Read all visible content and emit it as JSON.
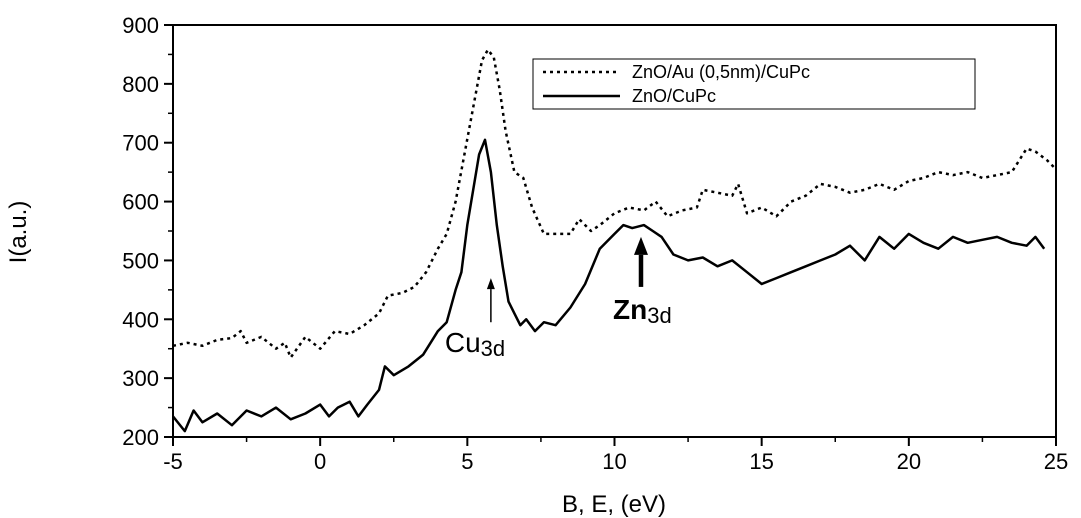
{
  "chart_data": {
    "type": "line",
    "xlabel": "B, E, (eV)",
    "ylabel": "I(a.u.)",
    "xlim": [
      -5,
      25
    ],
    "ylim": [
      200,
      900
    ],
    "xticks": [
      "-5",
      "0",
      "5",
      "10",
      "15",
      "20",
      "25"
    ],
    "yticks": [
      "200",
      "300",
      "400",
      "500",
      "600",
      "700",
      "800",
      "900"
    ],
    "grid": false,
    "legend_position": "top-right",
    "series": [
      {
        "name": "ZnO/Au (0,5nm)/CuPc",
        "style": "dotted",
        "color": "#000000",
        "x": [
          -5,
          -4.5,
          -4,
          -3.5,
          -3,
          -2.7,
          -2.5,
          -2,
          -1.5,
          -1.2,
          -1,
          -0.5,
          0,
          0.5,
          1,
          1.5,
          2,
          2.3,
          2.8,
          3.2,
          3.6,
          4,
          4.3,
          4.6,
          4.9,
          5.2,
          5.5,
          5.7,
          5.9,
          6.1,
          6.3,
          6.6,
          6.9,
          7.2,
          7.6,
          8,
          8.5,
          8.8,
          9.2,
          9.5,
          10,
          10.5,
          11,
          11.4,
          11.8,
          12.3,
          12.8,
          13,
          13.5,
          14,
          14.2,
          14.5,
          15,
          15.5,
          16,
          16.5,
          17,
          17.5,
          18,
          18.5,
          19,
          19.5,
          20,
          20.5,
          21,
          21.5,
          22,
          22.5,
          23,
          23.5,
          24,
          24.3,
          24.7,
          25
        ],
        "values": [
          355,
          360,
          355,
          365,
          368,
          380,
          360,
          370,
          350,
          360,
          335,
          370,
          350,
          380,
          375,
          390,
          410,
          440,
          445,
          455,
          480,
          520,
          545,
          600,
          680,
          760,
          840,
          858,
          845,
          790,
          720,
          650,
          640,
          590,
          545,
          545,
          545,
          570,
          550,
          560,
          580,
          590,
          585,
          600,
          575,
          585,
          590,
          620,
          615,
          610,
          630,
          580,
          590,
          575,
          600,
          610,
          630,
          625,
          615,
          620,
          630,
          620,
          635,
          640,
          650,
          645,
          650,
          640,
          645,
          650,
          690,
          685,
          670,
          655
        ]
      },
      {
        "name": "ZnO/CuPc",
        "style": "solid",
        "color": "#000000",
        "x": [
          -5,
          -4.6,
          -4.3,
          -4,
          -3.5,
          -3,
          -2.5,
          -2,
          -1.5,
          -1,
          -0.5,
          0,
          0.3,
          0.6,
          1,
          1.3,
          1.6,
          2,
          2.2,
          2.5,
          3,
          3.5,
          4,
          4.3,
          4.6,
          4.8,
          5,
          5.2,
          5.4,
          5.6,
          5.8,
          6,
          6.2,
          6.4,
          6.6,
          6.8,
          7,
          7.3,
          7.6,
          8,
          8.5,
          9,
          9.5,
          10,
          10.3,
          10.6,
          11,
          11.3,
          11.6,
          12,
          12.5,
          13,
          13.5,
          14,
          14.5,
          15,
          15.5,
          16,
          16.5,
          17,
          17.5,
          18,
          18.5,
          19,
          19.5,
          20,
          20.5,
          21,
          21.5,
          22,
          22.5,
          23,
          23.5,
          24,
          24.3,
          24.6
        ],
        "values": [
          235,
          210,
          245,
          225,
          240,
          220,
          245,
          235,
          250,
          230,
          240,
          255,
          235,
          250,
          260,
          235,
          255,
          280,
          320,
          305,
          320,
          340,
          380,
          395,
          450,
          480,
          560,
          620,
          680,
          705,
          650,
          560,
          490,
          430,
          410,
          390,
          400,
          380,
          395,
          390,
          420,
          460,
          520,
          545,
          560,
          555,
          560,
          550,
          540,
          510,
          500,
          505,
          490,
          500,
          480,
          460,
          470,
          480,
          490,
          500,
          510,
          525,
          500,
          540,
          520,
          545,
          530,
          520,
          540,
          530,
          535,
          540,
          530,
          525,
          540,
          520
        ]
      }
    ],
    "annotations": [
      {
        "main": "Cu",
        "sub": "3d",
        "arrow_x": 5.8,
        "arrow_tip_y": 470,
        "arrow_tail_y": 395,
        "arrow_weight": "thin"
      },
      {
        "main": "Zn",
        "sub": "3d",
        "arrow_x": 10.9,
        "arrow_tip_y": 540,
        "arrow_tail_y": 455,
        "arrow_weight": "bold"
      }
    ]
  }
}
